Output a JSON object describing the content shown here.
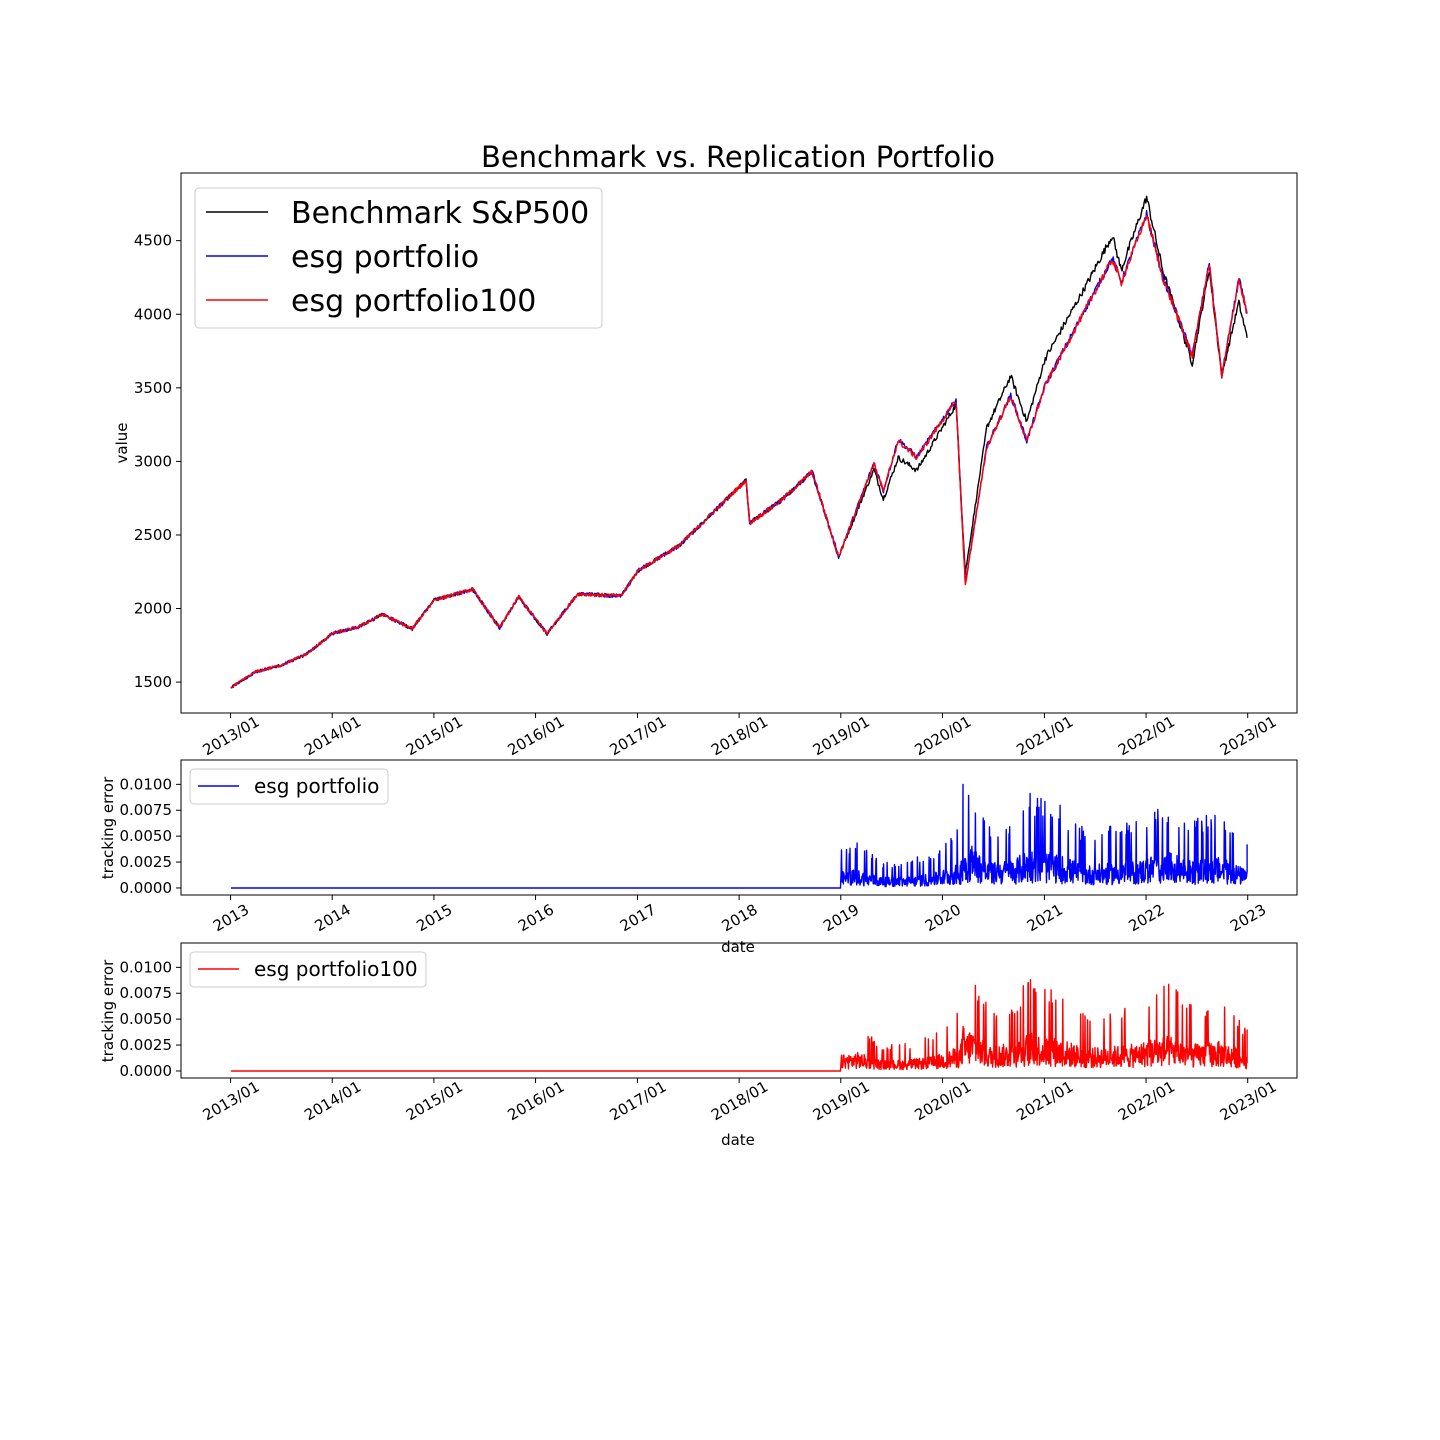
{
  "chart_data": [
    {
      "type": "line",
      "title": "Benchmark vs. Replication Portfolio",
      "xlabel": "",
      "ylabel": "value",
      "x_ticks": [
        "2013/01",
        "2014/01",
        "2015/01",
        "2016/01",
        "2017/01",
        "2018/01",
        "2019/01",
        "2020/01",
        "2021/01",
        "2022/01",
        "2023/01"
      ],
      "y_ticks": [
        "1500",
        "2000",
        "2500",
        "3000",
        "3500",
        "4000",
        "4500"
      ],
      "xlim": [
        "2012-07-07",
        "2023-06-27"
      ],
      "ylim": [
        1290,
        4960
      ],
      "grid": false,
      "legend_position": "upper-left",
      "series": [
        {
          "name": "Benchmark S&P500",
          "color": "#000000",
          "x": [
            "2013-01-02",
            "2013-04-01",
            "2013-07-01",
            "2013-10-01",
            "2014-01-02",
            "2014-04-01",
            "2014-07-01",
            "2014-10-15",
            "2015-01-02",
            "2015-05-20",
            "2015-08-25",
            "2015-11-01",
            "2016-02-11",
            "2016-06-01",
            "2016-11-04",
            "2017-01-03",
            "2017-06-01",
            "2018-01-26",
            "2018-02-08",
            "2018-06-01",
            "2018-09-20",
            "2018-12-24",
            "2019-04-30",
            "2019-06-03",
            "2019-07-26",
            "2019-10-01",
            "2020-02-19",
            "2020-03-23",
            "2020-06-08",
            "2020-09-02",
            "2020-10-30",
            "2021-01-04",
            "2021-06-01",
            "2021-09-02",
            "2021-10-04",
            "2022-01-03",
            "2022-03-01",
            "2022-06-16",
            "2022-08-16",
            "2022-09-30",
            "2022-11-30",
            "2022-12-30"
          ],
          "values": [
            1462,
            1570,
            1615,
            1690,
            1831,
            1872,
            1960,
            1862,
            2058,
            2130,
            1868,
            2080,
            1829,
            2100,
            2085,
            2258,
            2430,
            2872,
            2581,
            2735,
            2930,
            2351,
            2945,
            2744,
            3025,
            2940,
            3386,
            2237,
            3230,
            3580,
            3270,
            3700,
            4200,
            4536,
            4300,
            4796,
            4306,
            3667,
            4305,
            3585,
            4080,
            3840
          ]
        },
        {
          "name": "esg portfolio",
          "color": "#0000ff",
          "x": [
            "2013-01-02",
            "2013-04-01",
            "2013-07-01",
            "2013-10-01",
            "2014-01-02",
            "2014-04-01",
            "2014-07-01",
            "2014-10-15",
            "2015-01-02",
            "2015-05-20",
            "2015-08-25",
            "2015-11-01",
            "2016-02-11",
            "2016-06-01",
            "2016-11-04",
            "2017-01-03",
            "2017-06-01",
            "2018-01-26",
            "2018-02-08",
            "2018-06-01",
            "2018-09-20",
            "2018-12-24",
            "2019-04-30",
            "2019-06-03",
            "2019-07-26",
            "2019-10-01",
            "2020-02-19",
            "2020-03-23",
            "2020-06-08",
            "2020-09-02",
            "2020-10-30",
            "2021-01-04",
            "2021-06-01",
            "2021-09-02",
            "2021-10-04",
            "2022-01-03",
            "2022-03-01",
            "2022-06-16",
            "2022-08-16",
            "2022-09-30",
            "2022-11-30",
            "2022-12-30"
          ],
          "values": [
            1462,
            1570,
            1615,
            1690,
            1831,
            1872,
            1960,
            1862,
            2058,
            2130,
            1868,
            2080,
            1829,
            2100,
            2085,
            2258,
            2430,
            2872,
            2581,
            2735,
            2930,
            2351,
            2990,
            2800,
            3150,
            3030,
            3420,
            2165,
            3100,
            3450,
            3140,
            3520,
            4050,
            4380,
            4220,
            4680,
            4260,
            3720,
            4350,
            3580,
            4240,
            4010
          ]
        },
        {
          "name": "esg portfolio100",
          "color": "#ff0000",
          "x": [
            "2013-01-02",
            "2013-04-01",
            "2013-07-01",
            "2013-10-01",
            "2014-01-02",
            "2014-04-01",
            "2014-07-01",
            "2014-10-15",
            "2015-01-02",
            "2015-05-20",
            "2015-08-25",
            "2015-11-01",
            "2016-02-11",
            "2016-06-01",
            "2016-11-04",
            "2017-01-03",
            "2017-06-01",
            "2018-01-26",
            "2018-02-08",
            "2018-06-01",
            "2018-09-20",
            "2018-12-24",
            "2019-04-30",
            "2019-06-03",
            "2019-07-26",
            "2019-10-01",
            "2020-02-19",
            "2020-03-23",
            "2020-06-08",
            "2020-09-02",
            "2020-10-30",
            "2021-01-04",
            "2021-06-01",
            "2021-09-02",
            "2021-10-04",
            "2022-01-03",
            "2022-03-01",
            "2022-06-16",
            "2022-08-16",
            "2022-09-30",
            "2022-11-30",
            "2022-12-30"
          ],
          "values": [
            1462,
            1570,
            1615,
            1690,
            1831,
            1872,
            1960,
            1862,
            2058,
            2130,
            1868,
            2080,
            1829,
            2100,
            2085,
            2258,
            2430,
            2872,
            2581,
            2735,
            2930,
            2351,
            2985,
            2795,
            3140,
            3025,
            3415,
            2160,
            3095,
            3445,
            3135,
            3515,
            4045,
            4375,
            4215,
            4675,
            4255,
            3715,
            4345,
            3575,
            4235,
            4005
          ]
        }
      ]
    },
    {
      "type": "line",
      "title": "",
      "xlabel": "date",
      "ylabel": "tracking error",
      "x_ticks": [
        "2013",
        "2014",
        "2015",
        "2016",
        "2017",
        "2018",
        "2019",
        "2020",
        "2021",
        "2022",
        "2023"
      ],
      "y_ticks": [
        "0.0000",
        "0.0025",
        "0.0050",
        "0.0075",
        "0.0100"
      ],
      "xlim": [
        "2012-07-07",
        "2023-06-27"
      ],
      "ylim": [
        -0.00068,
        0.01235
      ],
      "grid": false,
      "legend_position": "upper-left",
      "series": [
        {
          "name": "esg portfolio",
          "color": "#0000ff",
          "x": [
            "2013-01-02",
            "2018-12-31",
            "2019-01-02",
            "2019-03-01",
            "2019-06-01",
            "2019-09-01",
            "2019-12-01",
            "2020-03-05",
            "2020-03-15",
            "2020-03-25",
            "2020-04-10",
            "2020-06-15",
            "2020-09-15",
            "2020-11-05",
            "2021-03-01",
            "2021-06-01",
            "2021-09-01",
            "2021-12-01",
            "2022-01-25",
            "2022-04-01",
            "2022-06-15",
            "2022-09-15",
            "2022-11-15",
            "2022-12-30"
          ],
          "values": [
            0,
            0,
            0.004,
            0.0045,
            0.0025,
            0.0027,
            0.0036,
            0.006,
            0.0115,
            0.009,
            0.011,
            0.006,
            0.007,
            0.0095,
            0.008,
            0.0055,
            0.006,
            0.0065,
            0.008,
            0.0085,
            0.0065,
            0.0075,
            0.006,
            0.0042
          ]
        }
      ]
    },
    {
      "type": "line",
      "title": "",
      "xlabel": "date",
      "ylabel": "tracking error",
      "x_ticks": [
        "2013/01",
        "2014/01",
        "2015/01",
        "2016/01",
        "2017/01",
        "2018/01",
        "2019/01",
        "2020/01",
        "2021/01",
        "2022/01",
        "2023/01"
      ],
      "y_ticks": [
        "0.0000",
        "0.0025",
        "0.0050",
        "0.0075",
        "0.0100"
      ],
      "xlim": [
        "2012-07-07",
        "2023-06-27"
      ],
      "ylim": [
        -0.00068,
        0.01235
      ],
      "grid": false,
      "legend_position": "upper-left",
      "series": [
        {
          "name": "esg portfolio100",
          "color": "#ff0000",
          "x": [
            "2013-01-02",
            "2018-12-31",
            "2019-01-02",
            "2019-03-01",
            "2019-06-01",
            "2019-09-01",
            "2019-12-01",
            "2020-03-05",
            "2020-03-15",
            "2020-03-25",
            "2020-04-10",
            "2020-06-15",
            "2020-09-15",
            "2020-11-05",
            "2021-03-01",
            "2021-06-01",
            "2021-09-01",
            "2021-12-01",
            "2022-01-25",
            "2022-04-01",
            "2022-06-15",
            "2022-09-15",
            "2022-11-15",
            "2022-12-30"
          ],
          "values": [
            0,
            0,
            0.0038,
            0.0045,
            0.0025,
            0.0027,
            0.0035,
            0.006,
            0.0113,
            0.0088,
            0.0105,
            0.006,
            0.0068,
            0.0093,
            0.0078,
            0.0055,
            0.006,
            0.0065,
            0.008,
            0.0085,
            0.0065,
            0.0072,
            0.006,
            0.004
          ]
        }
      ]
    }
  ]
}
